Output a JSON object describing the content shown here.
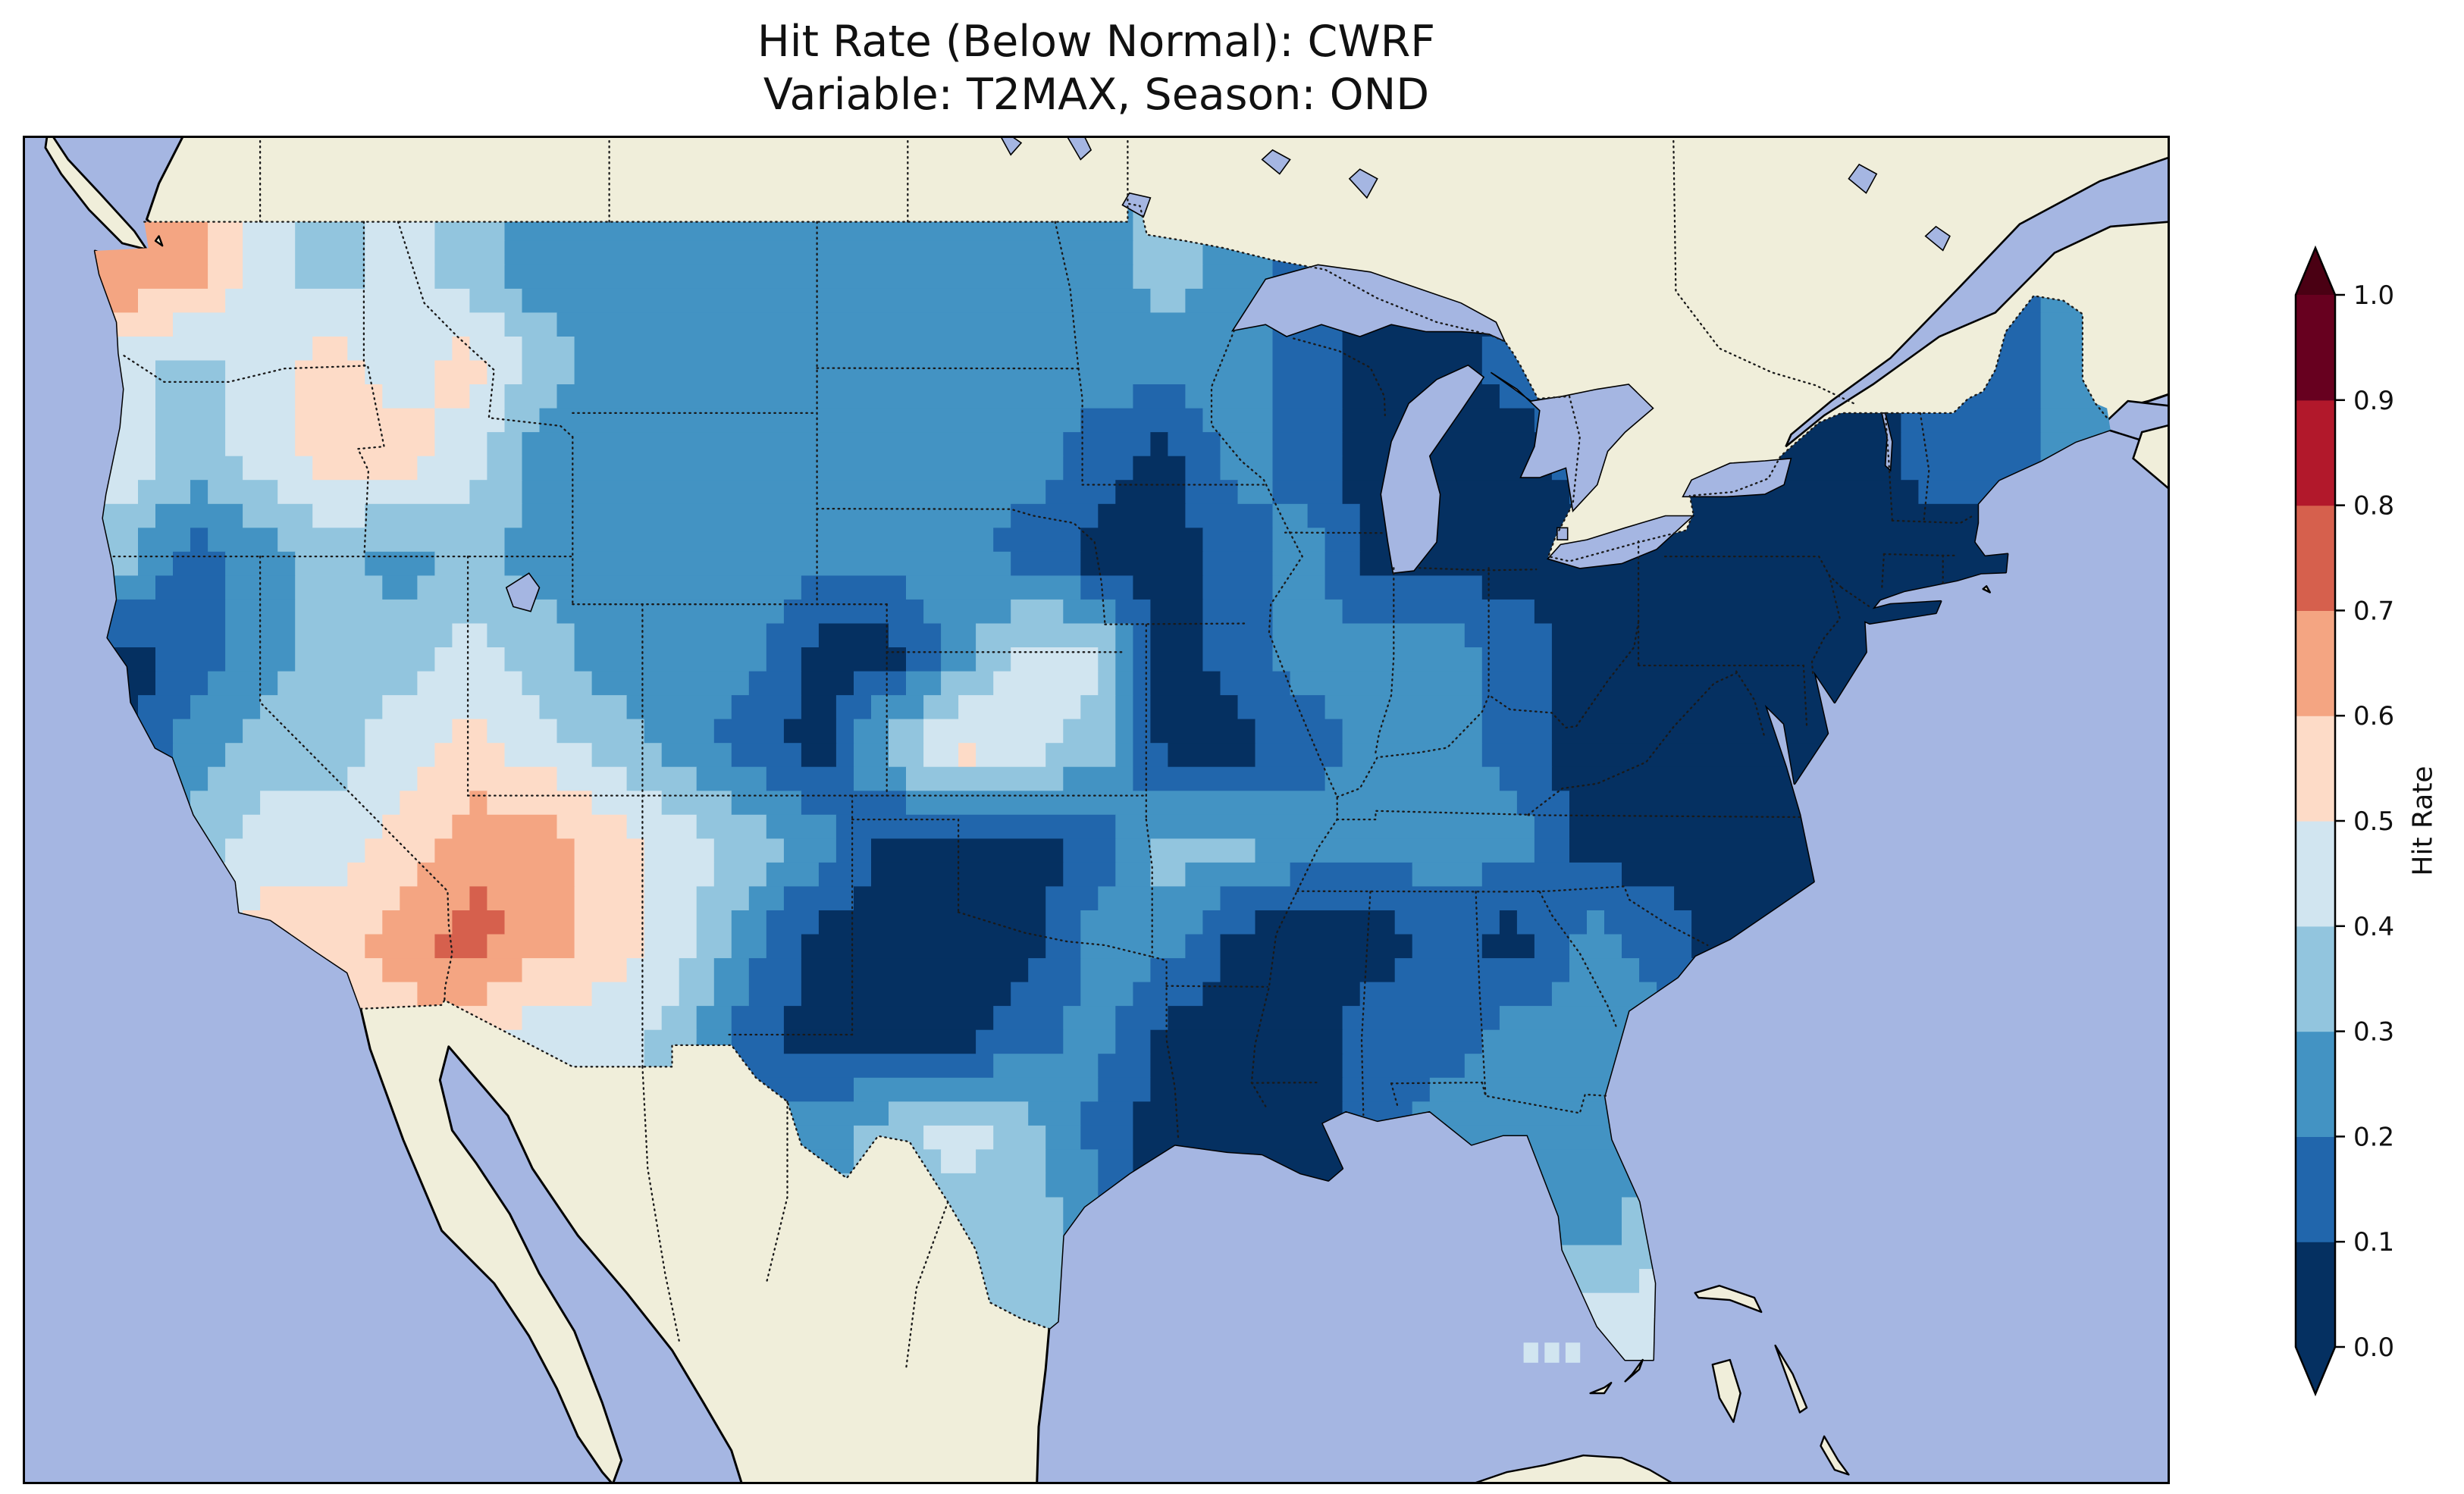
{
  "figure": {
    "title_line1": "Hit Rate (Below Normal): CWRF",
    "title_line2": "Variable: T2MAX, Season: OND"
  },
  "colorbar": {
    "label": "Hit Rate",
    "orientation": "vertical",
    "extend": "both",
    "tick_labels": [
      "0.0",
      "0.1",
      "0.2",
      "0.3",
      "0.4",
      "0.5",
      "0.6",
      "0.7",
      "0.8",
      "0.9",
      "1.0"
    ],
    "bin_colors": [
      "#053061",
      "#2166ac",
      "#4393c3",
      "#92c5de",
      "#d1e5f0",
      "#fddbc7",
      "#f4a582",
      "#d6604d",
      "#b2182b",
      "#67001f"
    ],
    "under_color": "#053061",
    "over_color": "#4a0013"
  },
  "map": {
    "ocean_color": "#a5b6e2",
    "land_color": "#f0eeda",
    "coast_color": "#000000",
    "border_linestyle": "dotted"
  },
  "chart_data": {
    "type": "heatmap",
    "title": "Hit Rate (Below Normal): CWRF",
    "subtitle": "Variable: T2MAX, Season: OND",
    "metric": "Hit Rate (Below Normal)",
    "model": "CWRF",
    "variable": "T2MAX",
    "season": "OND",
    "colormap": "RdBu_r (binned, 0.1 steps, extend both)",
    "value_range": [
      0,
      1
    ],
    "region": "Continental United States",
    "grid_note": "Approximate 2-degree reconstruction of the plotted hit-rate field; cell centers given below; null = no data (outside CONUS).",
    "lon_centers": [
      -124,
      -122,
      -120,
      -118,
      -116,
      -114,
      -112,
      -110,
      -108,
      -106,
      -104,
      -102,
      -100,
      -98,
      -96,
      -94,
      -92,
      -90,
      -88,
      -86,
      -84,
      -82,
      -80,
      -78,
      -76,
      -74,
      -72,
      -70,
      -68
    ],
    "lat_centers": [
      48,
      46,
      44,
      42,
      40,
      38,
      36,
      34,
      32,
      30,
      28,
      26
    ],
    "values": [
      [
        0.7,
        0.65,
        0.45,
        0.35,
        0.45,
        0.35,
        0.25,
        0.25,
        0.25,
        0.25,
        0.25,
        0.25,
        0.25,
        0.25,
        0.25,
        0.35,
        0.25,
        0.15,
        0.05,
        0.05,
        null,
        null,
        null,
        null,
        null,
        null,
        null,
        0.15,
        0.25
      ],
      [
        0.45,
        0.35,
        0.45,
        0.55,
        0.45,
        0.55,
        0.35,
        0.25,
        0.25,
        0.25,
        0.25,
        0.25,
        0.25,
        0.25,
        0.25,
        0.25,
        0.25,
        0.15,
        0.05,
        0.05,
        0.15,
        null,
        null,
        null,
        null,
        null,
        null,
        0.15,
        0.25
      ],
      [
        0.45,
        0.35,
        0.45,
        0.55,
        0.55,
        0.45,
        0.25,
        0.25,
        0.25,
        0.25,
        0.25,
        0.25,
        0.25,
        0.25,
        0.15,
        0.05,
        0.25,
        0.15,
        0.05,
        0.05,
        0.05,
        0.15,
        0.05,
        0.05,
        0.05,
        0.05,
        0.15,
        0.15,
        0.25
      ],
      [
        0.35,
        0.15,
        0.25,
        0.35,
        0.25,
        0.35,
        0.25,
        0.25,
        0.25,
        0.25,
        0.25,
        0.25,
        0.25,
        0.15,
        0.05,
        0.05,
        0.15,
        0.25,
        0.05,
        0.05,
        0.05,
        0.05,
        0.05,
        0.05,
        0.05,
        0.05,
        0.05,
        0.05,
        null
      ],
      [
        0.05,
        0.15,
        0.25,
        0.35,
        0.35,
        0.45,
        0.35,
        0.25,
        0.25,
        0.25,
        0.05,
        0.05,
        0.25,
        0.45,
        0.45,
        0.05,
        0.15,
        0.25,
        0.25,
        0.25,
        0.15,
        0.05,
        0.05,
        0.05,
        0.05,
        0.05,
        null,
        null,
        null
      ],
      [
        0.05,
        0.25,
        0.35,
        0.35,
        0.45,
        0.55,
        0.45,
        0.35,
        0.25,
        0.15,
        0.05,
        0.35,
        0.55,
        0.45,
        0.35,
        0.05,
        0.05,
        0.15,
        0.25,
        0.25,
        0.15,
        0.05,
        0.05,
        0.05,
        0.05,
        null,
        null,
        null,
        null
      ],
      [
        0.15,
        0.35,
        0.45,
        0.45,
        0.55,
        0.65,
        0.65,
        0.55,
        0.45,
        0.35,
        0.25,
        0.05,
        0.05,
        0.05,
        0.15,
        0.35,
        0.35,
        0.25,
        0.25,
        0.25,
        0.25,
        0.05,
        0.05,
        0.05,
        0.05,
        null,
        null,
        null,
        null
      ],
      [
        null,
        0.45,
        0.55,
        0.55,
        0.65,
        0.75,
        0.65,
        0.55,
        0.45,
        0.25,
        0.05,
        0.05,
        0.05,
        0.05,
        0.25,
        0.25,
        0.05,
        0.05,
        0.05,
        0.15,
        0.05,
        0.25,
        0.15,
        0.05,
        null,
        null,
        null,
        null,
        null
      ],
      [
        null,
        null,
        null,
        0.45,
        0.55,
        0.55,
        0.45,
        0.45,
        0.35,
        0.15,
        0.05,
        0.05,
        0.05,
        0.15,
        0.25,
        0.05,
        0.05,
        0.05,
        0.15,
        0.15,
        0.25,
        0.25,
        0.25,
        null,
        null,
        null,
        null,
        null,
        null
      ],
      [
        null,
        null,
        null,
        null,
        null,
        null,
        null,
        null,
        null,
        null,
        0.25,
        0.35,
        0.45,
        0.35,
        0.15,
        0.05,
        0.05,
        0.05,
        0.15,
        0.25,
        0.25,
        0.25,
        0.25,
        null,
        null,
        null,
        null,
        null,
        null
      ],
      [
        null,
        null,
        null,
        null,
        null,
        null,
        null,
        null,
        null,
        null,
        null,
        0.35,
        0.35,
        0.35,
        null,
        null,
        null,
        null,
        null,
        null,
        null,
        0.25,
        0.35,
        null,
        null,
        null,
        null,
        null,
        null
      ],
      [
        null,
        null,
        null,
        null,
        null,
        null,
        null,
        null,
        null,
        null,
        null,
        null,
        null,
        0.35,
        null,
        null,
        null,
        null,
        null,
        null,
        null,
        0.45,
        0.45,
        null,
        null,
        null,
        null,
        null,
        null
      ]
    ],
    "offshore_artifact_cells": [
      {
        "lon": -83.6,
        "lat": 25.35,
        "value": 0.45
      },
      {
        "lon": -83.0,
        "lat": 25.35,
        "value": 0.5
      },
      {
        "lon": -82.4,
        "lat": 25.35,
        "value": 0.45
      }
    ]
  }
}
